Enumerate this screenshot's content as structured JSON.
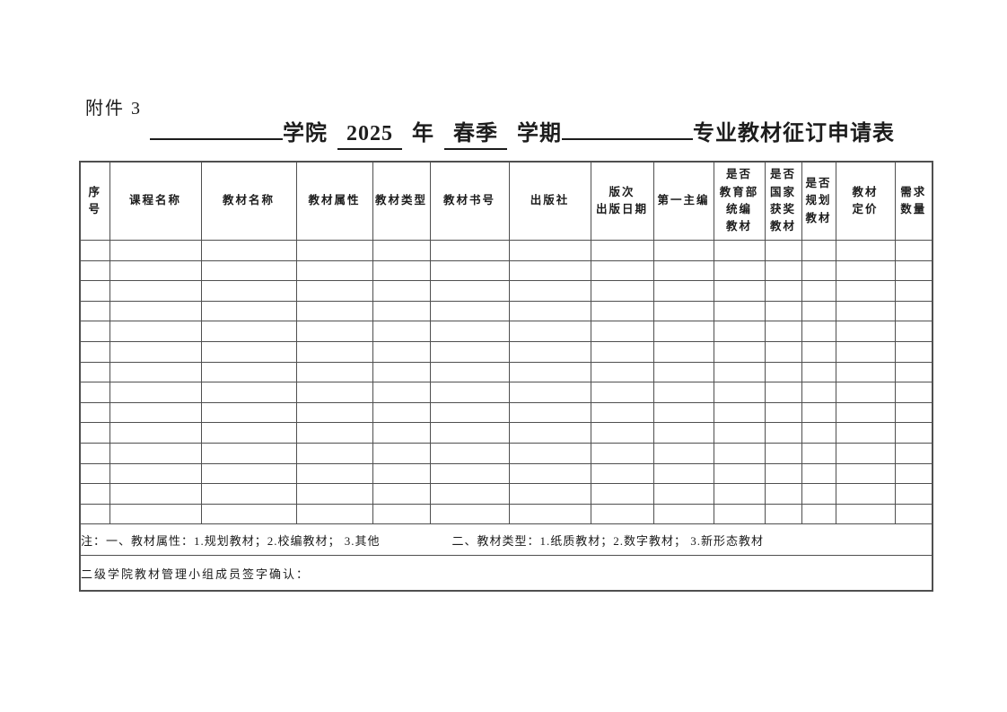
{
  "page": {
    "attachment_label": "附件 3",
    "title": {
      "college_suffix": "学院",
      "year": "2025",
      "year_unit": "年",
      "semester": "春季",
      "semester_unit": "学期",
      "form_name": "专业教材征订申请表"
    }
  },
  "table": {
    "headers": [
      "序\n号",
      "课程名称",
      "教材名称",
      "教材属性",
      "教材类型",
      "教材书号",
      "出版社",
      "版次\n出版日期",
      "第一主编",
      "是否\n教育部\n统编\n教材",
      "是否\n国家\n获奖\n教材",
      "是否\n规划\n教材",
      "教材\n定价",
      "需求\n数量"
    ],
    "empty_row_count": 14,
    "note_part1": "注：一、教材属性：1.规划教材；2.校编教材； 3.其他",
    "note_part2": "二、教材类型：1.纸质教材；2.数字教材； 3.新形态教材",
    "signature_label": "二级学院教材管理小组成员签字确认："
  }
}
